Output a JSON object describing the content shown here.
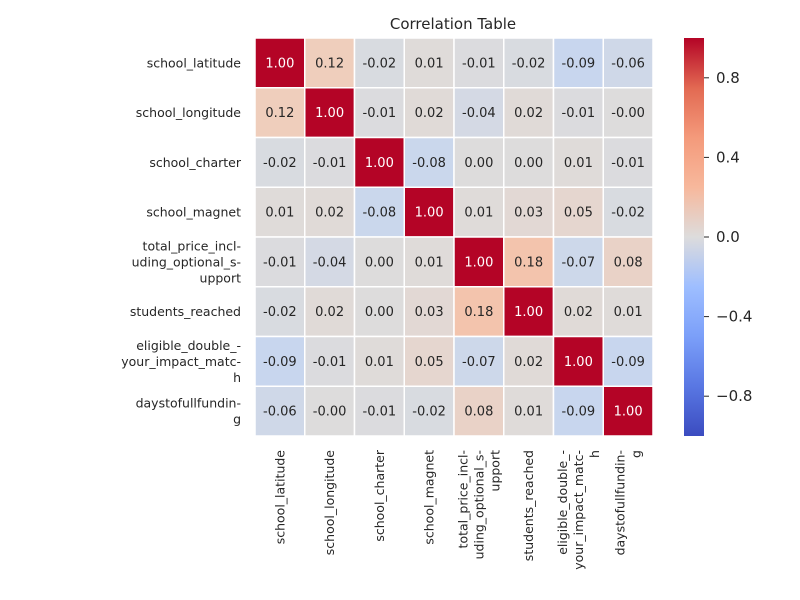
{
  "chart_data": {
    "type": "heatmap",
    "title": "Correlation Table",
    "row_labels": [
      [
        "school_latitude"
      ],
      [
        "school_longitude"
      ],
      [
        "school_charter"
      ],
      [
        "school_magnet"
      ],
      [
        "total_price_incl-",
        "uding_optional_s-",
        "upport"
      ],
      [
        "students_reached"
      ],
      [
        "eligible_double_-",
        "your_impact_matc-",
        "h"
      ],
      [
        "daystofullfundin-",
        "g"
      ]
    ],
    "col_labels": [
      [
        "school_latitude"
      ],
      [
        "school_longitude"
      ],
      [
        "school_charter"
      ],
      [
        "school_magnet"
      ],
      [
        "total_price_incl-",
        "uding_optional_s-",
        "upport"
      ],
      [
        "students_reached"
      ],
      [
        "eligible_double_-",
        "your_impact_matc-",
        "h"
      ],
      [
        "daystofullfundin-",
        "g"
      ]
    ],
    "values": [
      [
        1.0,
        0.12,
        -0.02,
        0.01,
        -0.01,
        -0.02,
        -0.09,
        -0.06
      ],
      [
        0.12,
        1.0,
        -0.01,
        0.02,
        -0.04,
        0.02,
        -0.01,
        -0.0
      ],
      [
        -0.02,
        -0.01,
        1.0,
        -0.08,
        0.0,
        0.0,
        0.01,
        -0.01
      ],
      [
        0.01,
        0.02,
        -0.08,
        1.0,
        0.01,
        0.03,
        0.05,
        -0.02
      ],
      [
        -0.01,
        -0.04,
        0.0,
        0.01,
        1.0,
        0.18,
        -0.07,
        0.08
      ],
      [
        -0.02,
        0.02,
        0.0,
        0.03,
        0.18,
        1.0,
        0.02,
        0.01
      ],
      [
        -0.09,
        -0.01,
        0.01,
        0.05,
        -0.07,
        0.02,
        1.0,
        -0.09
      ],
      [
        -0.06,
        -0.0,
        -0.01,
        -0.02,
        0.08,
        0.01,
        -0.09,
        1.0
      ]
    ],
    "value_format": "2 decimals",
    "colormap": "coolwarm",
    "vmin": -1,
    "vmax": 1,
    "colorbar_ticks": [
      "0.8",
      "0.4",
      "0.0",
      "−0.4",
      "−0.8"
    ],
    "colorbar_tick_values": [
      0.8,
      0.4,
      0.0,
      -0.4,
      -0.8
    ],
    "grid": false,
    "cell_border_color": "#ffffff"
  }
}
